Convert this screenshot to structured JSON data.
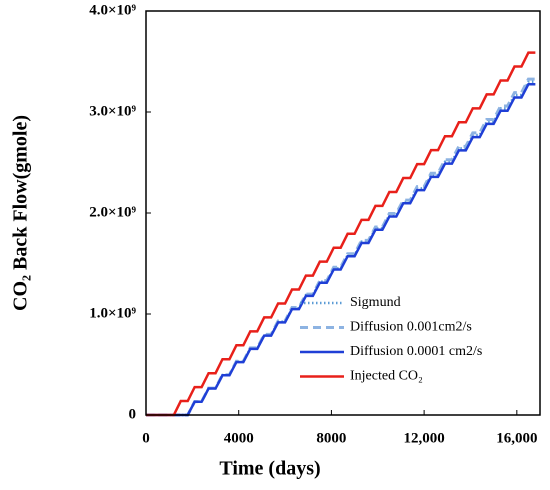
{
  "chart_data": {
    "type": "line",
    "xlabel": "Time (days)",
    "ylabel": "CO₂ Back Flow(gmole)",
    "x": [
      0,
      300,
      600,
      900,
      1200,
      1500,
      1800,
      2100,
      2400,
      2700,
      3000,
      3300,
      3600,
      3900,
      4200,
      4500,
      4800,
      5100,
      5400,
      5700,
      6000,
      6300,
      6600,
      6900,
      7200,
      7500,
      7800,
      8100,
      8400,
      8700,
      9000,
      9300,
      9600,
      9900,
      10200,
      10500,
      10800,
      11100,
      11400,
      11700,
      12000,
      12300,
      12600,
      12900,
      13200,
      13500,
      13800,
      14100,
      14400,
      14700,
      15000,
      15300,
      15600,
      15900,
      16200,
      16500,
      16800
    ],
    "series": [
      {
        "name": "Sigmund",
        "color": "#5b9bd5",
        "style": "dotted",
        "values": [
          0,
          0,
          0,
          0,
          0,
          0,
          0,
          132000000.0,
          132000000.0,
          264000000.0,
          264000000.0,
          396000000.0,
          396000000.0,
          528000000.0,
          528000000.0,
          660000000.0,
          660000000.0,
          792000000.0,
          792000000.0,
          924000000.0,
          924000000.0,
          1056000000.0,
          1056000000.0,
          1188000000.0,
          1188000000.0,
          1320000000.0,
          1320000000.0,
          1452000000.0,
          1452000000.0,
          1584000000.0,
          1584000000.0,
          1716000000.0,
          1716000000.0,
          1848000000.0,
          1848000000.0,
          1980000000.0,
          1980000000.0,
          2112000000.0,
          2112000000.0,
          2244000000.0,
          2244000000.0,
          2376000000.0,
          2376000000.0,
          2508000000.0,
          2508000000.0,
          2640000000.0,
          2640000000.0,
          2772000000.0,
          2772000000.0,
          2904000000.0,
          2904000000.0,
          3036000000.0,
          3036000000.0,
          3168000000.0,
          3168000000.0,
          3300000000.0,
          3300000000.0
        ]
      },
      {
        "name": "Diffusion 0.001cm2/s",
        "color": "#8db3e2",
        "style": "dashed",
        "values": [
          0,
          0,
          0,
          0,
          0,
          0,
          0,
          133000000.0,
          133000000.0,
          266000000.0,
          266000000.0,
          399000000.0,
          399000000.0,
          532000000.0,
          532000000.0,
          665000000.0,
          665000000.0,
          798000000.0,
          798000000.0,
          931000000.0,
          931000000.0,
          1064000000.0,
          1064000000.0,
          1197000000.0,
          1197000000.0,
          1330000000.0,
          1330000000.0,
          1463000000.0,
          1463000000.0,
          1596000000.0,
          1596000000.0,
          1729000000.0,
          1729000000.0,
          1862000000.0,
          1862000000.0,
          1995000000.0,
          1995000000.0,
          2128000000.0,
          2128000000.0,
          2261000000.0,
          2261000000.0,
          2394000000.0,
          2394000000.0,
          2527000000.0,
          2527000000.0,
          2660000000.0,
          2660000000.0,
          2793000000.0,
          2793000000.0,
          2926000000.0,
          2926000000.0,
          3059000000.0,
          3059000000.0,
          3192000000.0,
          3192000000.0,
          3325000000.0,
          3325000000.0
        ]
      },
      {
        "name": "Diffusion 0.0001 cm2/s",
        "color": "#1f3fd6",
        "style": "solid",
        "values": [
          0,
          0,
          0,
          0,
          0,
          0,
          0,
          131000000.0,
          131000000.0,
          262000000.0,
          262000000.0,
          393000000.0,
          393000000.0,
          524000000.0,
          524000000.0,
          655000000.0,
          655000000.0,
          786000000.0,
          786000000.0,
          917000000.0,
          917000000.0,
          1048000000.0,
          1048000000.0,
          1179000000.0,
          1179000000.0,
          1310000000.0,
          1310000000.0,
          1441000000.0,
          1441000000.0,
          1572000000.0,
          1572000000.0,
          1703000000.0,
          1703000000.0,
          1834000000.0,
          1834000000.0,
          1965000000.0,
          1965000000.0,
          2096000000.0,
          2096000000.0,
          2227000000.0,
          2227000000.0,
          2358000000.0,
          2358000000.0,
          2489000000.0,
          2489000000.0,
          2620000000.0,
          2620000000.0,
          2751000000.0,
          2751000000.0,
          2882000000.0,
          2882000000.0,
          3013000000.0,
          3013000000.0,
          3144000000.0,
          3144000000.0,
          3275000000.0,
          3275000000.0
        ]
      },
      {
        "name": "Injected CO₂",
        "color": "#e8201a",
        "style": "solid",
        "values": [
          0,
          0,
          0,
          0,
          0,
          138000000.0,
          138000000.0,
          276000000.0,
          276000000.0,
          414000000.0,
          414000000.0,
          552000000.0,
          552000000.0,
          690000000.0,
          690000000.0,
          828000000.0,
          828000000.0,
          966000000.0,
          966000000.0,
          1104000000.0,
          1104000000.0,
          1242000000.0,
          1242000000.0,
          1380000000.0,
          1380000000.0,
          1518000000.0,
          1518000000.0,
          1656000000.0,
          1656000000.0,
          1794000000.0,
          1794000000.0,
          1932000000.0,
          1932000000.0,
          2070000000.0,
          2070000000.0,
          2208000000.0,
          2208000000.0,
          2346000000.0,
          2346000000.0,
          2484000000.0,
          2484000000.0,
          2622000000.0,
          2622000000.0,
          2760000000.0,
          2760000000.0,
          2898000000.0,
          2898000000.0,
          3036000000.0,
          3036000000.0,
          3174000000.0,
          3174000000.0,
          3312000000.0,
          3312000000.0,
          3450000000.0,
          3450000000.0,
          3588000000.0,
          3588000000.0
        ]
      }
    ],
    "xlim": [
      0,
      17000
    ],
    "xticks": [
      0,
      4000,
      8000,
      {
        "value": 12000,
        "label": "12,000"
      },
      {
        "value": 16000,
        "label": "16,000"
      }
    ],
    "ylim": [
      0,
      4000000000
    ],
    "yticks": [
      0,
      {
        "value": 1000000000,
        "label": "1.0×10⁹"
      },
      {
        "value": 2000000000,
        "label": "2.0×10⁹"
      },
      {
        "value": 3000000000,
        "label": "3.0×10⁹"
      },
      {
        "value": 4000000000,
        "label": "4.0×10⁹"
      }
    ],
    "legend": "lower right"
  }
}
